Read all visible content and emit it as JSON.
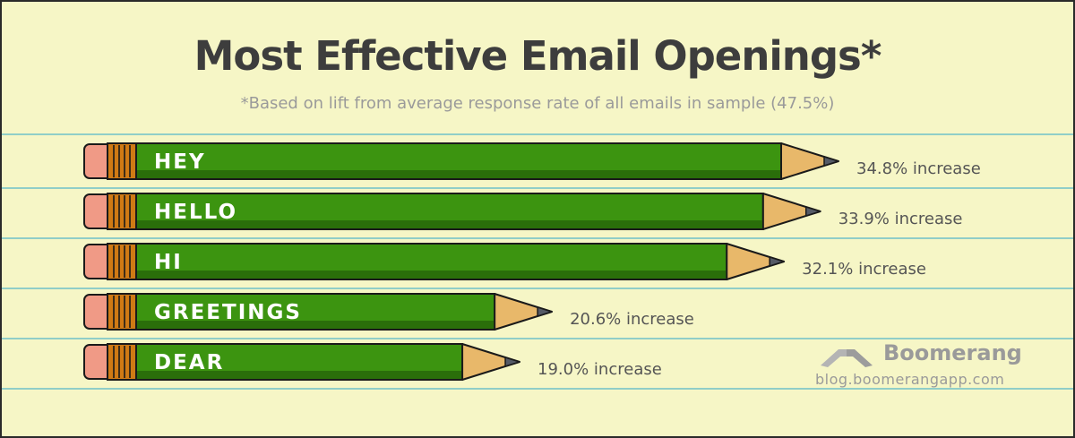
{
  "title": "Most Effective Email Openings*",
  "subtitle": "*Based on lift from average response rate of all emails in sample (47.5%)",
  "brand": {
    "name": "Boomerang",
    "url": "blog.boomerangapp.com"
  },
  "colors": {
    "background": "#f6f6c6",
    "rule_line": "#6ec0c8",
    "pencil_body": "#3c9410",
    "pencil_dark": "#2a6e0a",
    "eraser": "#f09a86",
    "ferrule": "#d07a14",
    "wood": "#e8b86a",
    "lead": "#555a66"
  },
  "chart_data": {
    "type": "bar",
    "orientation": "horizontal",
    "title": "Most Effective Email Openings*",
    "subtitle": "*Based on lift from average response rate of all emails in sample (47.5%)",
    "categories": [
      "HEY",
      "HELLO",
      "HI",
      "GREETINGS",
      "DEAR"
    ],
    "values": [
      34.8,
      33.9,
      32.1,
      20.6,
      19.0
    ],
    "value_labels": [
      "34.8% increase",
      "33.9% increase",
      "32.1% increase",
      "20.6% increase",
      "19.0% increase"
    ],
    "unit": "% increase",
    "xlim": [
      0,
      34.8
    ],
    "grid": false,
    "legend": "none"
  }
}
